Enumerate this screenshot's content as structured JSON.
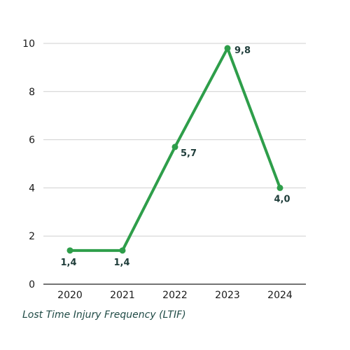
{
  "chart_data": {
    "type": "line",
    "categories": [
      "2020",
      "2021",
      "2022",
      "2023",
      "2024"
    ],
    "series": [
      {
        "values": [
          1.4,
          1.4,
          5.7,
          9.8,
          4.0
        ]
      }
    ],
    "data_labels": [
      "1,4",
      "1,4",
      "5,7",
      "9,8",
      "4,0"
    ],
    "y_ticks": [
      0,
      2,
      4,
      6,
      8,
      10
    ],
    "ylim": [
      0,
      10
    ],
    "grid": true,
    "caption": "Lost Time Injury Frequency (LTIF)",
    "line_color": "#2e9e4a"
  }
}
